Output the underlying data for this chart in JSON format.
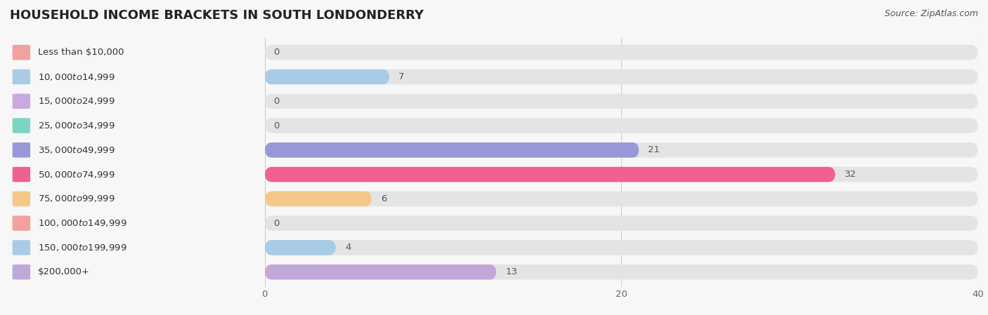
{
  "title": "HOUSEHOLD INCOME BRACKETS IN SOUTH LONDONDERRY",
  "source": "Source: ZipAtlas.com",
  "categories": [
    "Less than $10,000",
    "$10,000 to $14,999",
    "$15,000 to $24,999",
    "$25,000 to $34,999",
    "$35,000 to $49,999",
    "$50,000 to $74,999",
    "$75,000 to $99,999",
    "$100,000 to $149,999",
    "$150,000 to $199,999",
    "$200,000+"
  ],
  "values": [
    0,
    7,
    0,
    0,
    21,
    32,
    6,
    0,
    4,
    13
  ],
  "bar_colors": [
    "#f2a0a0",
    "#a8cce8",
    "#c9aae0",
    "#7dd4c4",
    "#9898d8",
    "#f06090",
    "#f5c888",
    "#f2a0a0",
    "#a8cce8",
    "#c0a8d8"
  ],
  "background_color": "#f7f7f7",
  "bar_background_color": "#e4e4e4",
  "row_bg_color": "#efefef",
  "xlim": [
    0,
    40
  ],
  "xticks": [
    0,
    20,
    40
  ],
  "title_fontsize": 13,
  "label_fontsize": 9.5,
  "value_fontsize": 9.5
}
